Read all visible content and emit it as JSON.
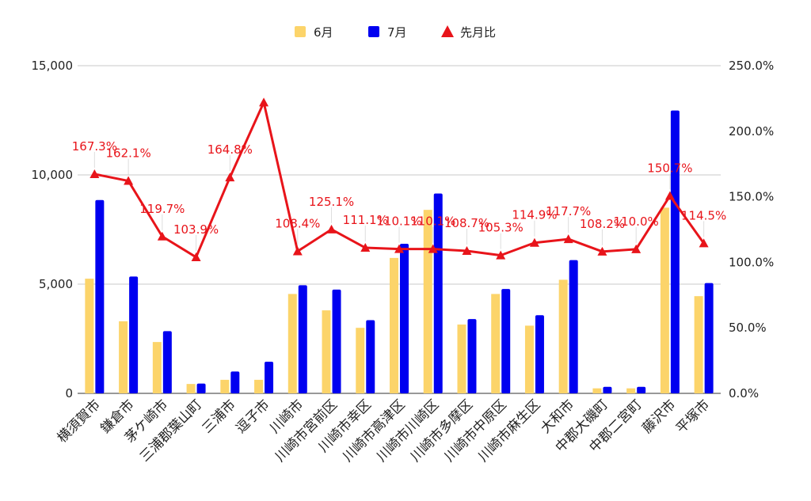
{
  "chart_data": {
    "type": "bar",
    "title": "",
    "legend_position": "top",
    "categories": [
      "横須賀市",
      "鎌倉市",
      "茅ケ崎市",
      "三浦郡葉山町",
      "三浦市",
      "逗子市",
      "川崎市",
      "川崎市宮前区",
      "川崎市幸区",
      "川崎市高津区",
      "川崎市川崎区",
      "川崎市多摩区",
      "川崎市中原区",
      "川崎市麻生区",
      "大和市",
      "中郡大磯町",
      "中郡二宮町",
      "藤沢市",
      "平塚市"
    ],
    "series": [
      {
        "name": "6月",
        "type": "bar",
        "axis": "left",
        "color": "#fcd46a",
        "values": [
          5250,
          3300,
          2350,
          430,
          620,
          620,
          4550,
          3800,
          3000,
          6200,
          8400,
          3150,
          4550,
          3100,
          5200,
          230,
          230,
          8500,
          4450
        ]
      },
      {
        "name": "7月",
        "type": "bar",
        "axis": "left",
        "color": "#0000f0",
        "values": [
          8850,
          5350,
          2850,
          450,
          1000,
          1450,
          4950,
          4750,
          3350,
          6850,
          9150,
          3400,
          4780,
          3580,
          6100,
          300,
          300,
          12950,
          5050
        ]
      },
      {
        "name": "先月比",
        "type": "line",
        "axis": "right",
        "color": "#e8141a",
        "values": [
          167.3,
          162.1,
          119.7,
          103.9,
          164.8,
          222.0,
          108.4,
          125.1,
          111.1,
          110.1,
          110.1,
          108.7,
          105.3,
          114.9,
          117.7,
          108.2,
          110.0,
          150.7,
          114.5
        ]
      }
    ],
    "data_labels": [
      "167.3%",
      "162.1%",
      "119.7%",
      "103.9%",
      "164.8%",
      "",
      "108.4%",
      "125.1%",
      "111.1%",
      "110.1%",
      "110.1%",
      "108.7%",
      "105.3%",
      "114.9%",
      "117.7%",
      "108.2%",
      "110.0%",
      "150.7%",
      "114.5%"
    ],
    "y_left": {
      "min": 0,
      "max": 15000,
      "ticks": [
        "0",
        "5,000",
        "10,000",
        "15,000"
      ]
    },
    "y_right": {
      "min": 0,
      "max": 250,
      "ticks": [
        "0.0%",
        "50.0%",
        "100.0%",
        "150.0%",
        "200.0%",
        "250.0%"
      ]
    },
    "grid": true
  }
}
